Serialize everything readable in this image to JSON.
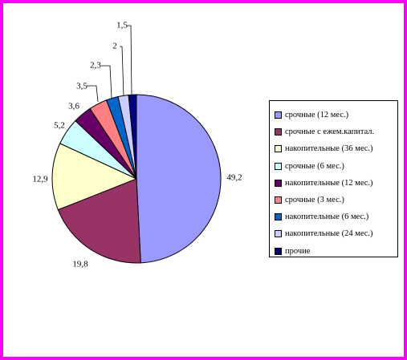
{
  "chart_data": {
    "type": "pie",
    "categories": [
      "срочные (12 мес.)",
      "срочные с ежем.капитал.",
      "накопительные (36 мес.)",
      "срочные (6 мес.)",
      "накопительные (12 мес.)",
      "срочные (3 мес.)",
      "накопительные (6 мес.)",
      "накопительные (24 мес.)",
      "прочие"
    ],
    "values": [
      49.2,
      19.8,
      12.9,
      5.2,
      3.6,
      3.5,
      2.3,
      2,
      1.5
    ],
    "data_labels": [
      "49,2",
      "19,8",
      "12,9",
      "5,2",
      "3,6",
      "3,5",
      "2,3",
      "2",
      "1,5"
    ],
    "colors": [
      "#9999ff",
      "#993366",
      "#ffffcc",
      "#ccffff",
      "#660066",
      "#ff8080",
      "#0066cc",
      "#ccccff",
      "#000080"
    ],
    "legend_position": "right",
    "title": ""
  }
}
